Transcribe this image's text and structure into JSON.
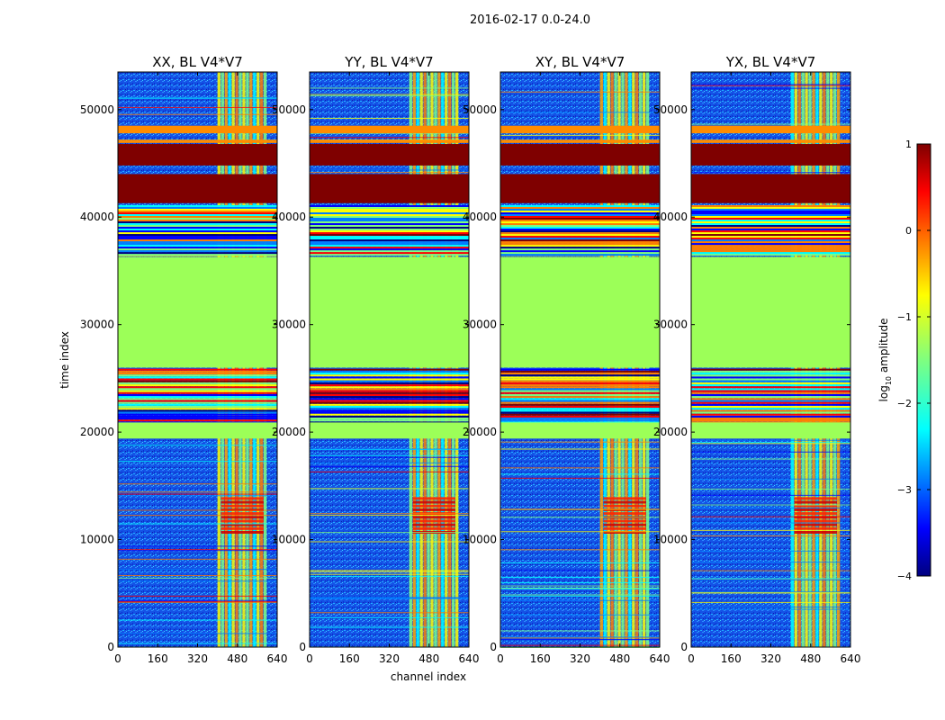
{
  "figure": {
    "suptitle": "2016-02-17 0.0-24.0",
    "xlabel": "channel index",
    "ylabel": "time index"
  },
  "chart_data": {
    "type": "heatmap",
    "x_range": [
      0,
      640
    ],
    "y_range": [
      0,
      53500
    ],
    "x_ticks": [
      "0",
      "160",
      "320",
      "480",
      "640"
    ],
    "x_tick_values": [
      0,
      160,
      320,
      480,
      640
    ],
    "y_ticks": [
      "0",
      "10000",
      "20000",
      "30000",
      "40000",
      "50000"
    ],
    "y_tick_values": [
      0,
      10000,
      20000,
      30000,
      40000,
      50000
    ],
    "panels": [
      {
        "title": "XX, BL V4*V7"
      },
      {
        "title": "YY, BL V4*V7"
      },
      {
        "title": "XY, BL V4*V7"
      },
      {
        "title": "YX, BL V4*V7"
      }
    ],
    "colorbar": {
      "label": "log10 amplitude",
      "label_base": "log",
      "label_sub": "10",
      "label_rest": " amplitude",
      "range": [
        -4,
        1
      ],
      "tick_values": [
        1,
        0,
        -1,
        -2,
        -3,
        -4
      ],
      "ticks": [
        "1",
        "0",
        "−1",
        "−2",
        "−3",
        "−4"
      ],
      "colormap": [
        "#00007f",
        "#0000ff",
        "#007fff",
        "#00ffff",
        "#7fff7f",
        "#ffff00",
        "#ff7f00",
        "#ff0000",
        "#7f0000"
      ]
    },
    "features": {
      "rfi_channel_band": [
        400,
        600
      ],
      "saturated_blocks": [
        [
          41300,
          44000
        ],
        [
          44800,
          46800
        ]
      ],
      "flat_blocks": [
        [
          26000,
          36300
        ],
        [
          19400,
          20900
        ]
      ],
      "high_amplitude_region": [
        10500,
        14000
      ],
      "orange_bands": [
        [
          47800,
          48500
        ],
        [
          46900,
          47200
        ]
      ]
    }
  }
}
